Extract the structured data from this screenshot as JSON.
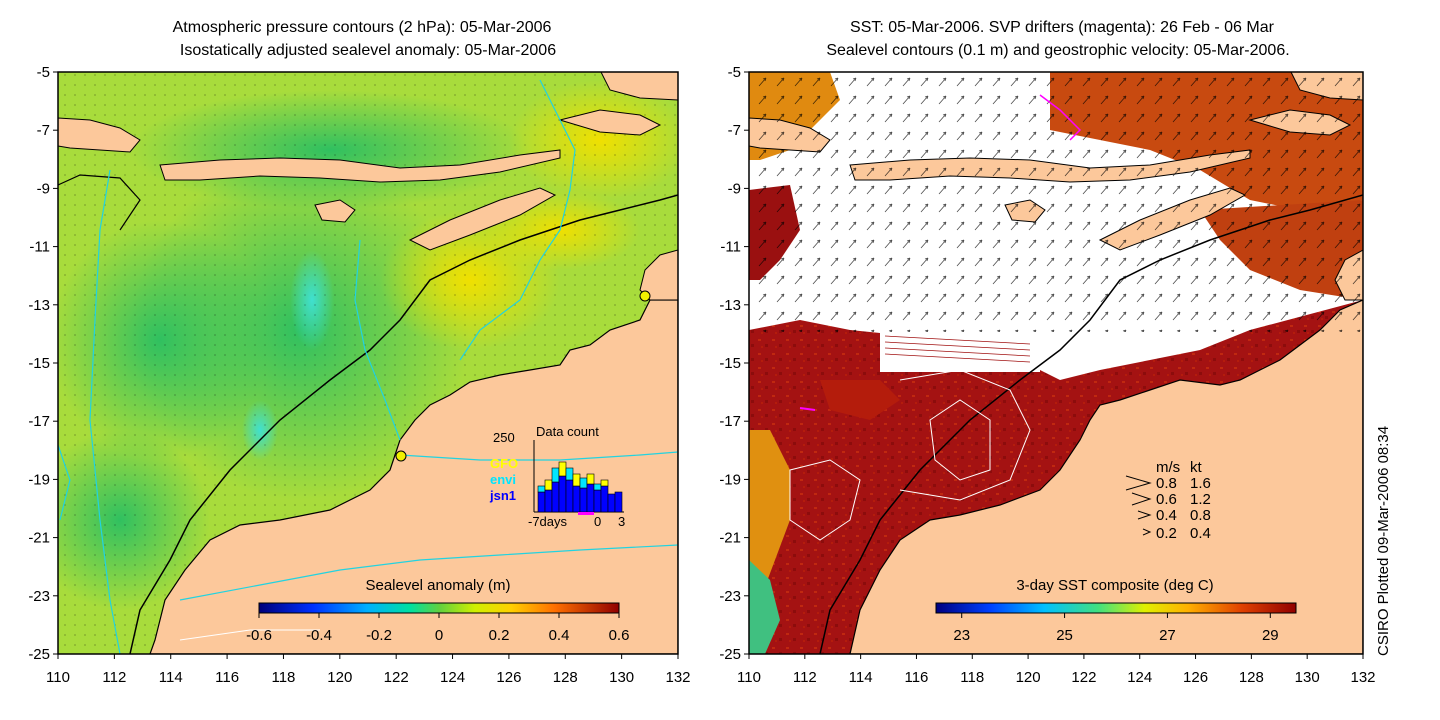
{
  "left_panel": {
    "title_line1": "Atmospheric pressure contours (2 hPa): 05-Mar-2006",
    "title_line2": "Isostatically adjusted sealevel anomaly: 05-Mar-2006",
    "x_ticks": [
      "110",
      "112",
      "114",
      "116",
      "118",
      "120",
      "122",
      "124",
      "126",
      "128",
      "130",
      "132"
    ],
    "y_ticks": [
      "-5",
      "-7",
      "-9",
      "-11",
      "-13",
      "-15",
      "-17",
      "-19",
      "-21",
      "-23",
      "-25"
    ],
    "colorbar_label": "Sealevel anomaly (m)",
    "colorbar_ticks": [
      "-0.6",
      "-0.4",
      "-0.2",
      "0",
      "0.2",
      "0.4",
      "0.6"
    ],
    "colorbar_range": [
      -0.6,
      0.6
    ],
    "inset": {
      "title": "Data count",
      "y_label": "250",
      "legend": [
        {
          "name": "GFO",
          "color": "#ffff00"
        },
        {
          "name": "envi",
          "color": "#00e5ff"
        },
        {
          "name": "jsn1",
          "color": "#0000ff"
        }
      ],
      "x_labels": [
        "-7days",
        "0",
        "3"
      ]
    }
  },
  "right_panel": {
    "title_line1": "SST: 05-Mar-2006. SVP drifters (magenta): 26 Feb - 06 Mar",
    "title_line2": "Sealevel contours (0.1 m) and geostrophic velocity: 05-Mar-2006.",
    "x_ticks": [
      "110",
      "112",
      "114",
      "116",
      "118",
      "120",
      "122",
      "124",
      "126",
      "128",
      "130",
      "132"
    ],
    "y_ticks": [
      "-5",
      "-7",
      "-9",
      "-11",
      "-13",
      "-15",
      "-17",
      "-19",
      "-21",
      "-23",
      "-25"
    ],
    "colorbar_label": "3-day SST composite (deg C)",
    "colorbar_ticks": [
      "23",
      "25",
      "27",
      "29"
    ],
    "colorbar_range": [
      22.5,
      29.5
    ],
    "velocity_legend": {
      "header_ms": "m/s",
      "header_kt": "kt",
      "rows": [
        {
          "ms": "0.8",
          "kt": "1.6"
        },
        {
          "ms": "0.6",
          "kt": "1.2"
        },
        {
          "ms": "0.4",
          "kt": "0.8"
        },
        {
          "ms": "0.2",
          "kt": "0.4"
        }
      ]
    }
  },
  "credit": "CSIRO Plotted 09-Mar-2006 08:34",
  "colors": {
    "land": "#fcc89b",
    "sst_warm": "#a01010",
    "contour_cyan": "#22d3e0",
    "drifter_magenta": "#ff00ff"
  }
}
